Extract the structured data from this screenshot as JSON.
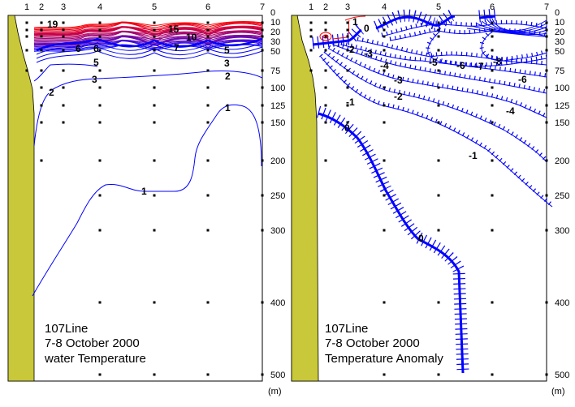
{
  "chart_data": [
    {
      "type": "contour",
      "title_lines": [
        "107Line",
        "7-8 October 2000",
        "water Temperature"
      ],
      "stations": [
        "1",
        "2",
        "3",
        "4",
        "5",
        "6",
        "7"
      ],
      "depth_ticks": [
        "0",
        "10",
        "20",
        "30",
        "50",
        "75",
        "100",
        "125",
        "150",
        "200",
        "250",
        "300",
        "400",
        "500"
      ],
      "depth_unit": "(m)",
      "contour_labels": [
        "19",
        "15",
        "10",
        "7",
        "6",
        "6",
        "5",
        "5",
        "3",
        "3",
        "2",
        "2",
        "1",
        "1"
      ],
      "colors": {
        "warm": "#ff0000",
        "mid": "#a00070",
        "cold": "#0000ff",
        "land": "#c8c83a"
      }
    },
    {
      "type": "contour",
      "title_lines": [
        "107Line",
        "7-8 October 2000",
        "Temperature Anomaly"
      ],
      "stations": [
        "1",
        "2",
        "3",
        "4",
        "5",
        "6",
        "7"
      ],
      "depth_ticks": [
        "0",
        "10",
        "20",
        "30",
        "50",
        "75",
        "100",
        "125",
        "150",
        "200",
        "250",
        "300",
        "400",
        "500"
      ],
      "depth_unit": "(m)",
      "contour_labels": [
        "1",
        "0",
        "-2",
        "-3",
        "-4",
        "-5",
        "-6",
        "-6",
        "-7",
        "-8",
        "-3",
        "-2",
        "-1",
        "-4",
        "-1",
        "0",
        "0"
      ],
      "colors": {
        "positive": "#ff0000",
        "negative": "#0000ff",
        "land": "#c8c83a"
      }
    }
  ]
}
